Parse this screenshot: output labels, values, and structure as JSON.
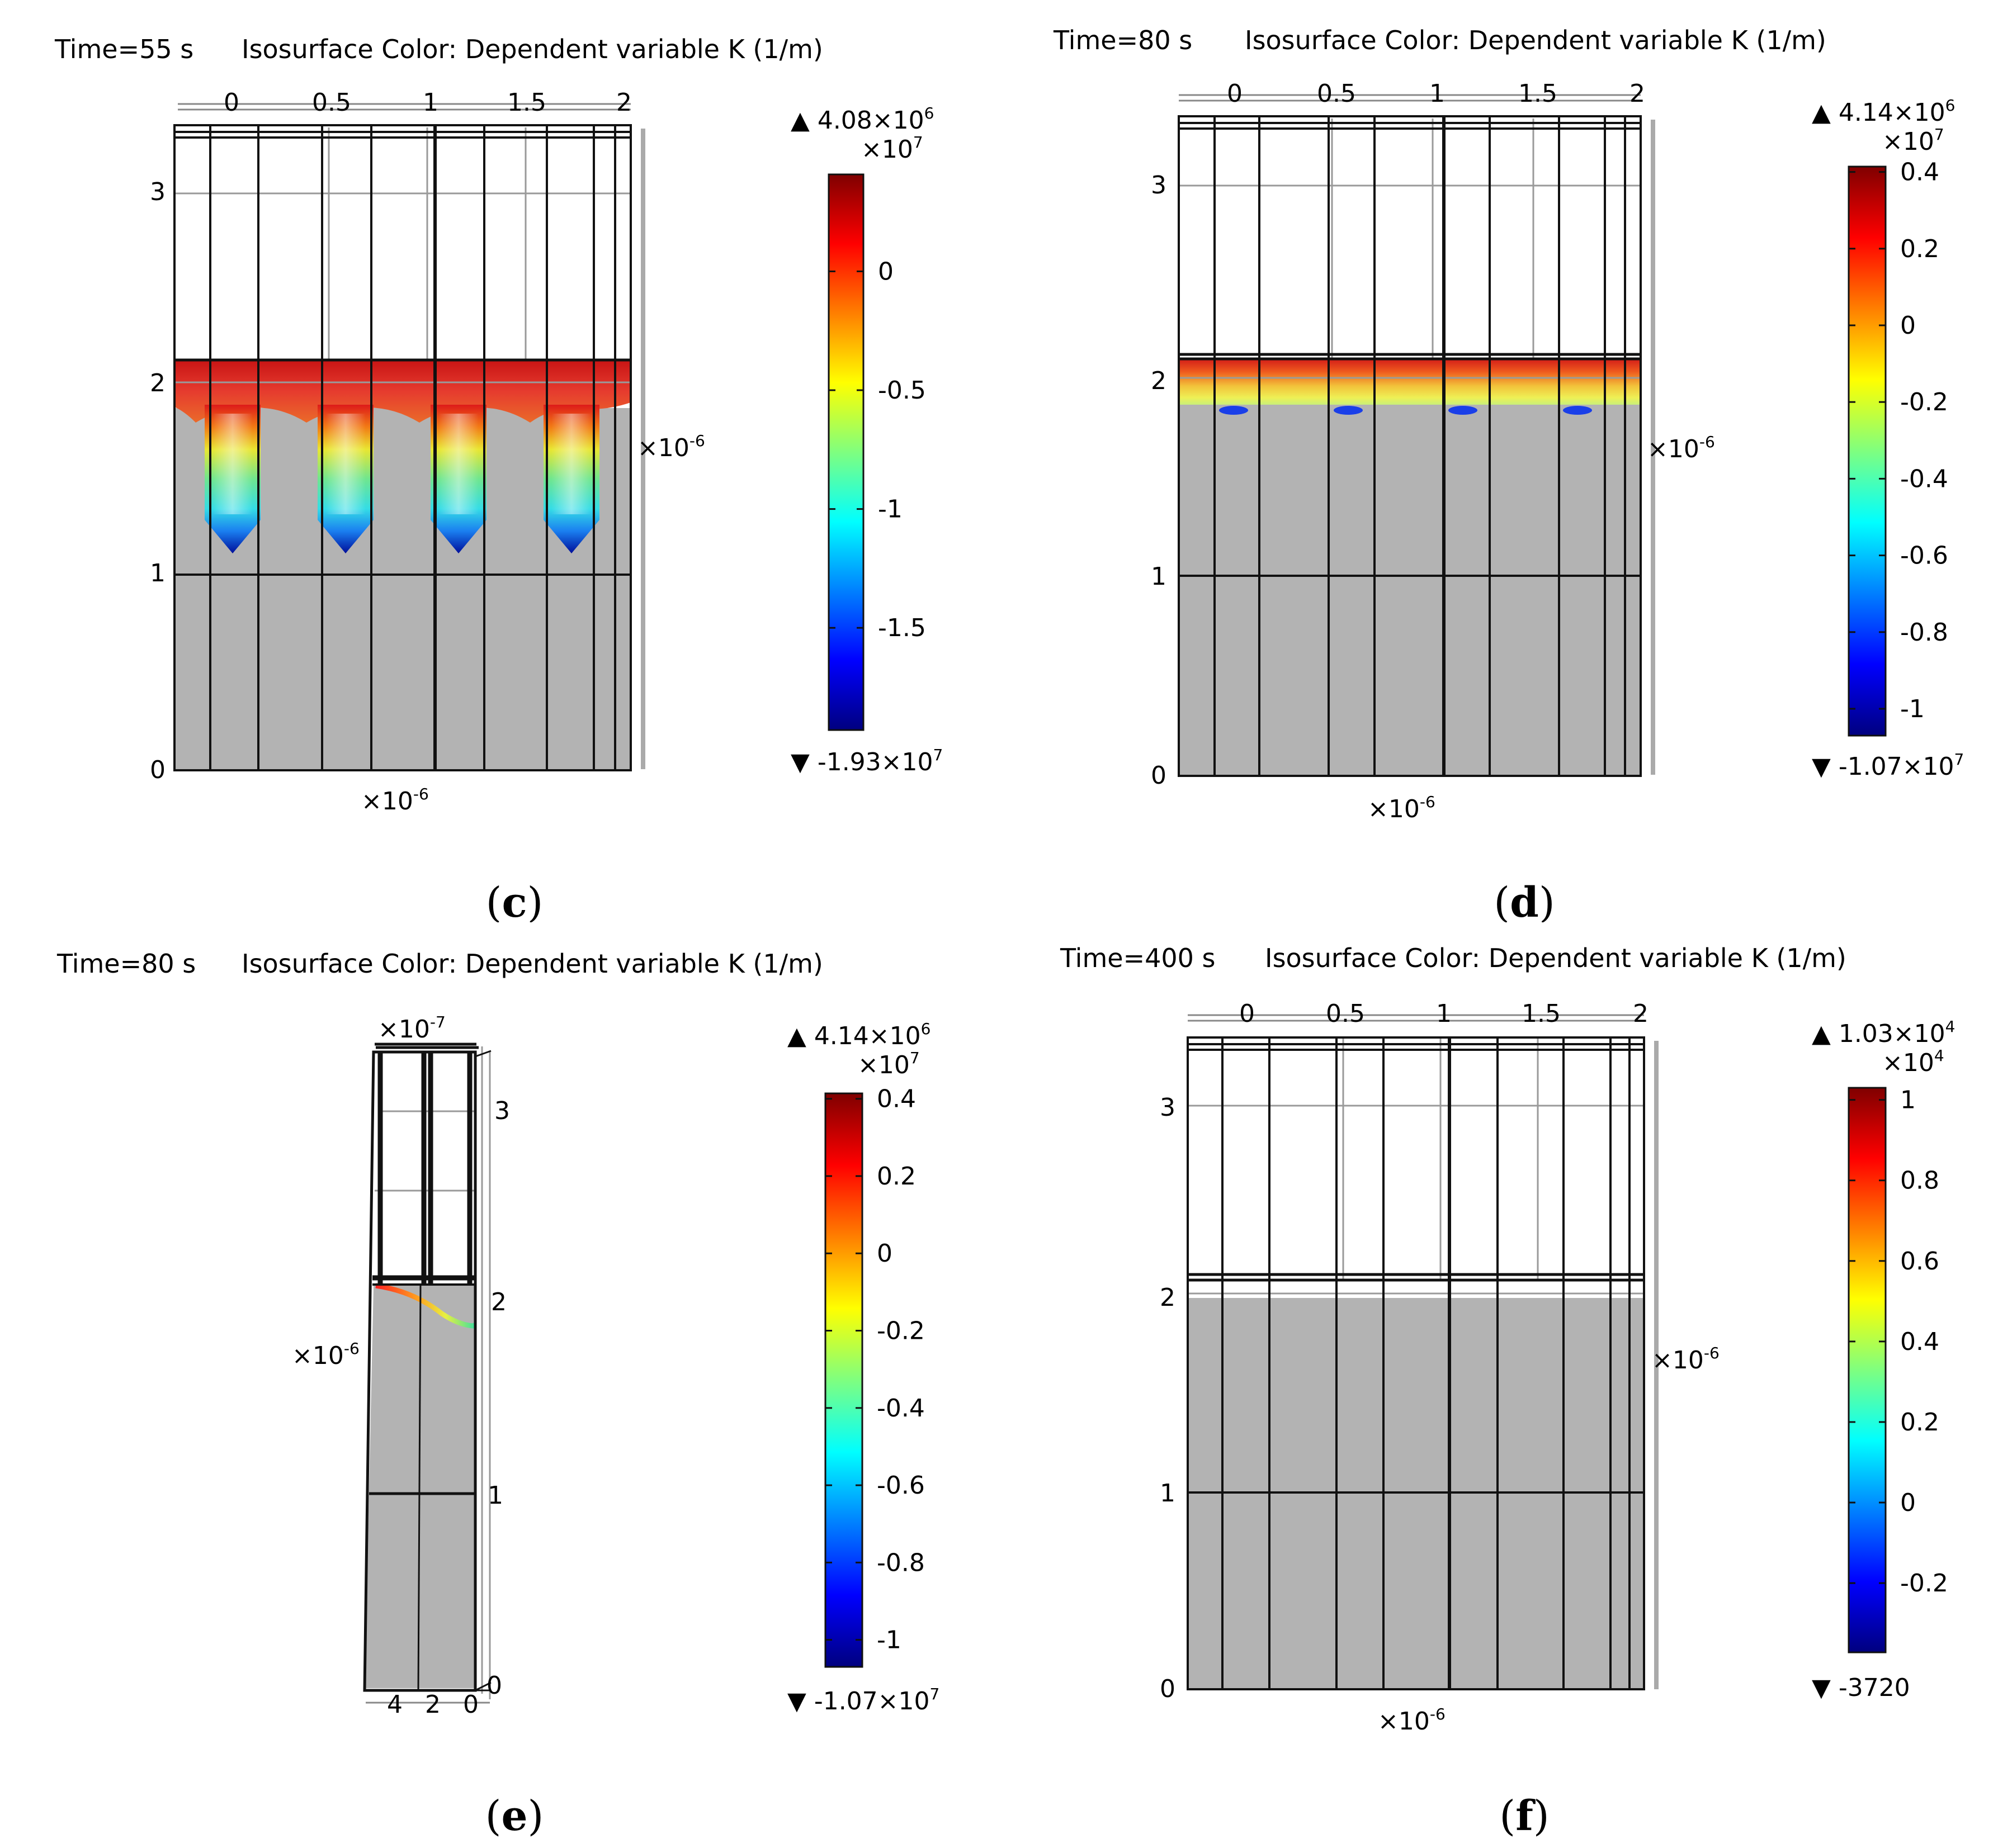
{
  "panels": [
    {
      "id": "c",
      "label_text": "(c)",
      "label_letter": "c",
      "time": "Time=55 s",
      "title": "Isosurface Color: Dependent variable K (1/m)",
      "top_ticks": [
        "0",
        "0.5",
        "1",
        "1.5",
        "2"
      ],
      "left_ticks": [
        "0",
        "1",
        "2",
        "3"
      ],
      "side_multiplier": "×10",
      "side_multiplier_exp": "-6",
      "bottom_multiplier": "×10",
      "bottom_multiplier_exp": "-6",
      "colorbar": {
        "max_text": "▲ 4.08×10",
        "max_exp": "6",
        "scale_text": "×10",
        "scale_exp": "7",
        "min_text": "▼ -1.93×10",
        "min_exp": "7",
        "ticks": [
          "0",
          "-0.5",
          "-1",
          "-1.5"
        ]
      }
    },
    {
      "id": "d",
      "label_text": "(d)",
      "label_letter": "d",
      "time": "Time=80 s",
      "title": "Isosurface Color: Dependent variable K (1/m)",
      "top_ticks": [
        "0",
        "0.5",
        "1",
        "1.5",
        "2"
      ],
      "left_ticks": [
        "0",
        "1",
        "2",
        "3"
      ],
      "side_multiplier": "×10",
      "side_multiplier_exp": "-6",
      "bottom_multiplier": "×10",
      "bottom_multiplier_exp": "-6",
      "colorbar": {
        "max_text": "▲ 4.14×10",
        "max_exp": "6",
        "scale_text": "×10",
        "scale_exp": "7",
        "min_text": "▼ -1.07×10",
        "min_exp": "7",
        "ticks": [
          "0.4",
          "0.2",
          "0",
          "-0.2",
          "-0.4",
          "-0.6",
          "-0.8",
          "-1"
        ]
      }
    },
    {
      "id": "e",
      "label_text": "(e)",
      "label_letter": "e",
      "time": "Time=80 s",
      "title": "Isosurface Color: Dependent variable K (1/m)",
      "top_multiplier": "×10",
      "top_multiplier_exp": "-7",
      "side_ticks": [
        "3",
        "2",
        "1",
        "0"
      ],
      "bottom_ticks": [
        "4",
        "2",
        "0"
      ],
      "left_multiplier": "×10",
      "left_multiplier_exp": "-6",
      "colorbar": {
        "max_text": "▲ 4.14×10",
        "max_exp": "6",
        "scale_text": "×10",
        "scale_exp": "7",
        "min_text": "▼ -1.07×10",
        "min_exp": "7",
        "ticks": [
          "0.4",
          "0.2",
          "0",
          "-0.2",
          "-0.4",
          "-0.6",
          "-0.8",
          "-1"
        ]
      }
    },
    {
      "id": "f",
      "label_text": "(f)",
      "label_letter": "f",
      "time": "Time=400 s",
      "title": "Isosurface Color: Dependent variable K (1/m)",
      "top_ticks": [
        "0",
        "0.5",
        "1",
        "1.5",
        "2"
      ],
      "left_ticks": [
        "0",
        "1",
        "2",
        "3"
      ],
      "side_multiplier": "×10",
      "side_multiplier_exp": "-6",
      "bottom_multiplier": "×10",
      "bottom_multiplier_exp": "-6",
      "colorbar": {
        "max_text": "▲ 1.03×10",
        "max_exp": "4",
        "scale_text": "×10",
        "scale_exp": "4",
        "min_text": "▼ -3720",
        "min_exp": "",
        "ticks": [
          "1",
          "0.8",
          "0.6",
          "0.4",
          "0.2",
          "0",
          "-0.2"
        ]
      }
    }
  ],
  "chart_data": [
    {
      "type": "heatmap",
      "panel": "c",
      "time_s": 55,
      "title": "Isosurface Color: Dependent variable K (1/m)",
      "x_axis_range": [
        0,
        2
      ],
      "x_axis_scale": "1e-6",
      "y_axis_range": [
        0,
        3.4
      ],
      "y_axis_scale": "1e-6",
      "x_ticks": [
        0,
        0.5,
        1,
        1.5,
        2
      ],
      "y_ticks": [
        0,
        1,
        2,
        3
      ],
      "color_range": [
        -19300000,
        4080000
      ],
      "colorbar_ticks": [
        0,
        -0.5,
        -1,
        -1.5
      ],
      "colorbar_scale": 10000000,
      "colormap": "jet",
      "feature_heights": [
        1.15,
        1.15,
        1.15,
        1.15
      ],
      "interface_height": 2.1
    },
    {
      "type": "heatmap",
      "panel": "d",
      "time_s": 80,
      "title": "Isosurface Color: Dependent variable K (1/m)",
      "x_axis_range": [
        0,
        2
      ],
      "x_axis_scale": "1e-6",
      "y_axis_range": [
        0,
        3.4
      ],
      "y_axis_scale": "1e-6",
      "x_ticks": [
        0,
        0.5,
        1,
        1.5,
        2
      ],
      "y_ticks": [
        0,
        1,
        2,
        3
      ],
      "color_range": [
        -10700000,
        4140000
      ],
      "colorbar_ticks": [
        0.4,
        0.2,
        0,
        -0.2,
        -0.4,
        -0.6,
        -0.8,
        -1
      ],
      "colorbar_scale": 10000000,
      "colormap": "jet",
      "interface_height": 2.1
    },
    {
      "type": "heatmap",
      "panel": "e",
      "time_s": 80,
      "title": "Isosurface Color: Dependent variable K (1/m)",
      "view": "side",
      "depth_ticks": [
        4,
        2,
        0
      ],
      "depth_scale": "1e-7",
      "y_ticks": [
        0,
        1,
        2,
        3
      ],
      "y_axis_scale": "1e-6",
      "color_range": [
        -10700000,
        4140000
      ],
      "colorbar_ticks": [
        0.4,
        0.2,
        0,
        -0.2,
        -0.4,
        -0.6,
        -0.8,
        -1
      ],
      "colorbar_scale": 10000000,
      "colormap": "jet"
    },
    {
      "type": "heatmap",
      "panel": "f",
      "time_s": 400,
      "title": "Isosurface Color: Dependent variable K (1/m)",
      "x_axis_range": [
        0,
        2
      ],
      "x_axis_scale": "1e-6",
      "y_axis_range": [
        0,
        3.4
      ],
      "y_axis_scale": "1e-6",
      "x_ticks": [
        0,
        0.5,
        1,
        1.5,
        2
      ],
      "y_ticks": [
        0,
        1,
        2,
        3
      ],
      "color_range": [
        -3720,
        10300
      ],
      "colorbar_ticks": [
        1,
        0.8,
        0.6,
        0.4,
        0.2,
        0,
        -0.2
      ],
      "colorbar_scale": 10000,
      "colormap": "jet",
      "interface_height": 2.0
    }
  ],
  "colors": {
    "solid": "#b3b3b3",
    "frame": "#111111",
    "grid": "#9a9a9a",
    "jet": [
      "#00007f",
      "#0000ff",
      "#007fff",
      "#00ffff",
      "#7fff7f",
      "#ffff00",
      "#ff7f00",
      "#ff0000",
      "#7f0000"
    ]
  }
}
